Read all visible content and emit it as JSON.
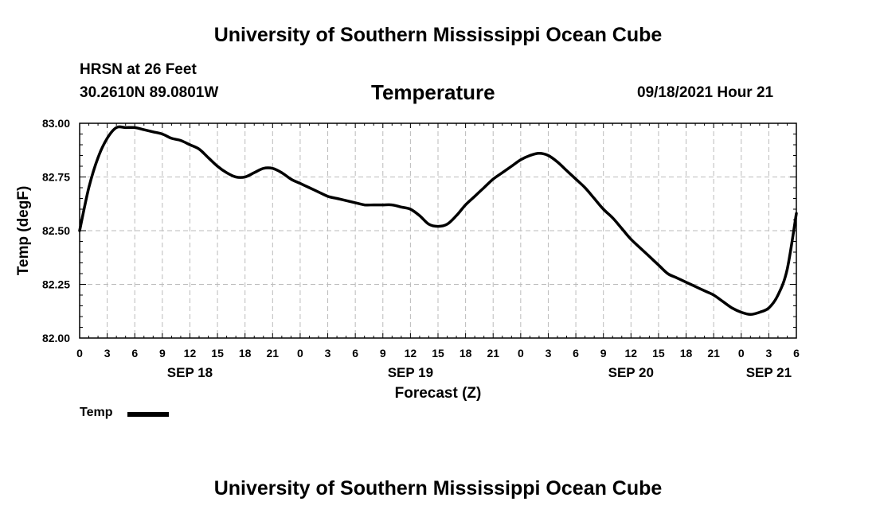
{
  "header": {
    "title": "University of Southern Mississippi Ocean Cube",
    "station": "HRSN at 26 Feet",
    "coords": "30.2610N  89.0801W",
    "chart_title": "Temperature",
    "issue_time": "09/18/2021 Hour 21"
  },
  "footer": {
    "title": "University of Southern Mississippi Ocean Cube"
  },
  "legend": {
    "label": "Temp"
  },
  "colors": {
    "line": "#000000",
    "grid": "#bbbbbb",
    "background": "#ffffff"
  },
  "chart_data": {
    "type": "line",
    "title": "Temperature",
    "xlabel": "Forecast (Z)",
    "ylabel": "Temp (degF)",
    "xlim": [
      0,
      78
    ],
    "ylim": [
      82.0,
      83.0
    ],
    "y_ticks": [
      "82.00",
      "82.25",
      "82.50",
      "82.75",
      "83.00"
    ],
    "x_ticks": [
      {
        "x": 0,
        "label": "0"
      },
      {
        "x": 3,
        "label": "3"
      },
      {
        "x": 6,
        "label": "6"
      },
      {
        "x": 9,
        "label": "9"
      },
      {
        "x": 12,
        "label": "12"
      },
      {
        "x": 15,
        "label": "15"
      },
      {
        "x": 18,
        "label": "18"
      },
      {
        "x": 21,
        "label": "21"
      },
      {
        "x": 24,
        "label": "0"
      },
      {
        "x": 27,
        "label": "3"
      },
      {
        "x": 30,
        "label": "6"
      },
      {
        "x": 33,
        "label": "9"
      },
      {
        "x": 36,
        "label": "12"
      },
      {
        "x": 39,
        "label": "15"
      },
      {
        "x": 42,
        "label": "18"
      },
      {
        "x": 45,
        "label": "21"
      },
      {
        "x": 48,
        "label": "0"
      },
      {
        "x": 51,
        "label": "3"
      },
      {
        "x": 54,
        "label": "6"
      },
      {
        "x": 57,
        "label": "9"
      },
      {
        "x": 60,
        "label": "12"
      },
      {
        "x": 63,
        "label": "15"
      },
      {
        "x": 66,
        "label": "18"
      },
      {
        "x": 69,
        "label": "21"
      },
      {
        "x": 72,
        "label": "0"
      },
      {
        "x": 75,
        "label": "3"
      },
      {
        "x": 78,
        "label": "6"
      }
    ],
    "date_labels": [
      {
        "x": 12,
        "label": "SEP 18"
      },
      {
        "x": 36,
        "label": "SEP 19"
      },
      {
        "x": 60,
        "label": "SEP 20"
      },
      {
        "x": 75,
        "label": "SEP 21"
      }
    ],
    "series": [
      {
        "name": "Temp",
        "x": [
          0,
          1,
          2,
          3,
          4,
          5,
          6,
          7,
          8,
          9,
          10,
          11,
          12,
          13,
          14,
          15,
          16,
          17,
          18,
          19,
          20,
          21,
          22,
          23,
          24,
          25,
          26,
          27,
          28,
          29,
          30,
          31,
          32,
          33,
          34,
          35,
          36,
          37,
          38,
          39,
          40,
          41,
          42,
          43,
          44,
          45,
          46,
          47,
          48,
          49,
          50,
          51,
          52,
          53,
          54,
          55,
          56,
          57,
          58,
          59,
          60,
          61,
          62,
          63,
          64,
          65,
          66,
          67,
          68,
          69,
          70,
          71,
          72,
          73,
          74,
          75,
          76,
          77,
          78
        ],
        "values": [
          82.5,
          82.7,
          82.84,
          82.93,
          82.98,
          82.98,
          82.98,
          82.97,
          82.96,
          82.95,
          82.93,
          82.92,
          82.9,
          82.88,
          82.84,
          82.8,
          82.77,
          82.75,
          82.75,
          82.77,
          82.79,
          82.79,
          82.77,
          82.74,
          82.72,
          82.7,
          82.68,
          82.66,
          82.65,
          82.64,
          82.63,
          82.62,
          82.62,
          82.62,
          82.62,
          82.61,
          82.6,
          82.57,
          82.53,
          82.52,
          82.53,
          82.57,
          82.62,
          82.66,
          82.7,
          82.74,
          82.77,
          82.8,
          82.83,
          82.85,
          82.86,
          82.85,
          82.82,
          82.78,
          82.74,
          82.7,
          82.65,
          82.6,
          82.56,
          82.51,
          82.46,
          82.42,
          82.38,
          82.34,
          82.3,
          82.28,
          82.26,
          82.24,
          82.22,
          82.2,
          82.17,
          82.14,
          82.12,
          82.11,
          82.12,
          82.14,
          82.2,
          82.32,
          82.58
        ]
      }
    ]
  }
}
